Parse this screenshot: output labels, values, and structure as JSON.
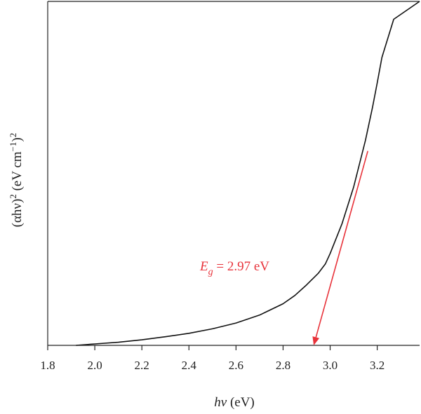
{
  "chart_data": {
    "type": "line",
    "title": "",
    "xlabel_var": "hν",
    "xlabel_unit": " (eV)",
    "ylabel_var": "(αhν)",
    "ylabel_sup": "2",
    "ylabel_unit_a": " (eV cm",
    "ylabel_sup2": "−1",
    "ylabel_unit_b": ")",
    "ylabel_sup3": "2",
    "xlim": [
      1.8,
      3.38
    ],
    "ylim": [
      0,
      1
    ],
    "y_tick_labels": false,
    "grid": false,
    "x_ticks": [
      {
        "value": 1.8,
        "label": "1.8"
      },
      {
        "value": 2.0,
        "label": "2.0"
      },
      {
        "value": 2.2,
        "label": "2.2"
      },
      {
        "value": 2.4,
        "label": "2.4"
      },
      {
        "value": 2.6,
        "label": "2.6"
      },
      {
        "value": 2.8,
        "label": "2.8"
      },
      {
        "value": 3.0,
        "label": "3.0"
      },
      {
        "value": 3.2,
        "label": "3.2"
      }
    ],
    "series": [
      {
        "color": "#111111",
        "x": [
          1.92,
          2.0,
          2.1,
          2.2,
          2.3,
          2.4,
          2.5,
          2.6,
          2.7,
          2.8,
          2.85,
          2.9,
          2.95,
          2.98,
          3.0,
          3.05,
          3.1,
          3.15,
          3.18,
          3.2,
          3.22,
          3.27,
          3.38
        ],
        "y": [
          0.0,
          0.004,
          0.009,
          0.016,
          0.025,
          0.035,
          0.048,
          0.065,
          0.088,
          0.121,
          0.145,
          0.176,
          0.21,
          0.237,
          0.267,
          0.353,
          0.461,
          0.596,
          0.692,
          0.763,
          0.837,
          0.948,
          1.0
        ]
      }
    ],
    "annotations": [
      {
        "type": "tangent-arrow",
        "color": "#e8323a",
        "from": {
          "x": 3.16,
          "y": 0.565
        },
        "to": {
          "x": 2.93,
          "y": 0.0
        },
        "label_var": "E",
        "label_sub": "g",
        "label_value": " = 2.97 eV"
      }
    ]
  }
}
